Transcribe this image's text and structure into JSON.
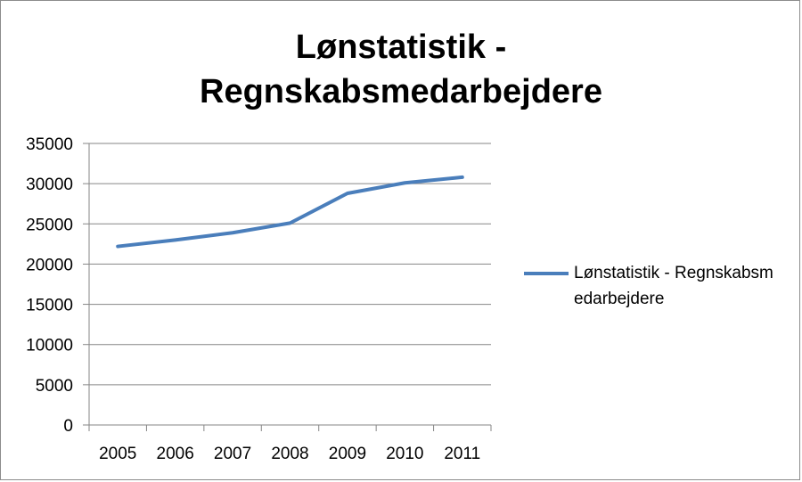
{
  "chart_data": {
    "type": "line",
    "title": "Lønstatistik - Regnskabsmedarbejdere",
    "title_lines": [
      "Lønstatistik -",
      "Regnskabsmedarbejdere"
    ],
    "xlabel": "",
    "ylabel": "",
    "categories": [
      "2005",
      "2006",
      "2007",
      "2008",
      "2009",
      "2010",
      "2011"
    ],
    "series": [
      {
        "name": "Lønstatistik - Regnskabsmedarbejdere",
        "values": [
          22200,
          23000,
          23900,
          25100,
          28800,
          30100,
          30800
        ],
        "color": "#4a7ebb"
      }
    ],
    "ylim": [
      0,
      35000
    ],
    "yticks": [
      "0",
      "5000",
      "10000",
      "15000",
      "20000",
      "25000",
      "30000",
      "35000"
    ],
    "grid": true,
    "legend_position": "right"
  }
}
